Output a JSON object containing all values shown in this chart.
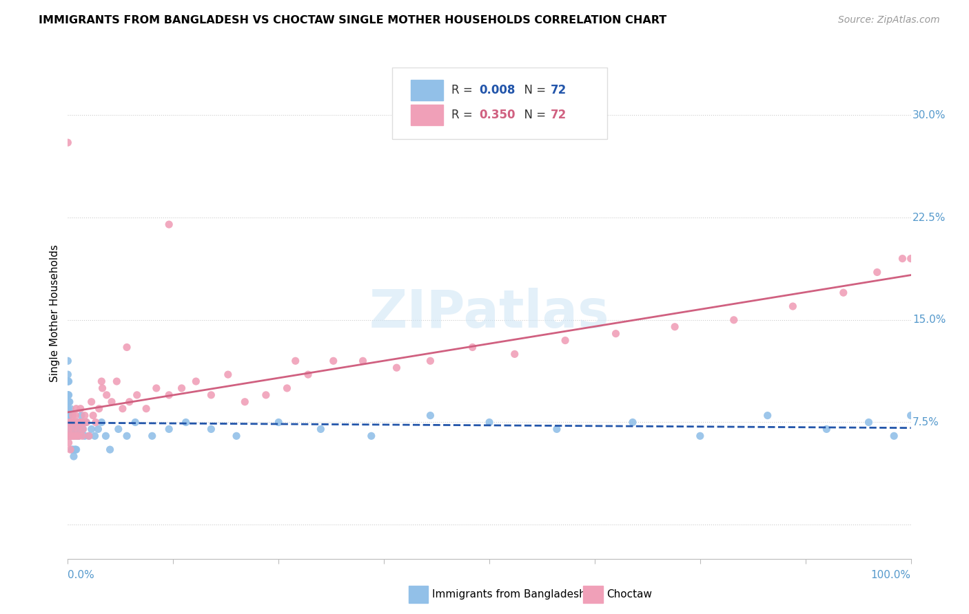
{
  "title": "IMMIGRANTS FROM BANGLADESH VS CHOCTAW SINGLE MOTHER HOUSEHOLDS CORRELATION CHART",
  "source": "Source: ZipAtlas.com",
  "ylabel": "Single Mother Households",
  "ytick_vals": [
    0.0,
    0.075,
    0.15,
    0.225,
    0.3
  ],
  "ytick_labels": [
    "",
    "7.5%",
    "15.0%",
    "22.5%",
    "30.0%"
  ],
  "xrange": [
    0.0,
    1.0
  ],
  "yrange": [
    -0.025,
    0.335
  ],
  "blue_color": "#92c0e8",
  "pink_color": "#f0a0b8",
  "blue_line_color": "#2255aa",
  "pink_line_color": "#d06080",
  "R_blue": "0.008",
  "R_pink": "0.350",
  "N": "72",
  "watermark": "ZIPatlas",
  "blue_x": [
    0.0,
    0.0,
    0.0,
    0.0,
    0.0,
    0.0,
    0.0,
    0.0,
    0.0,
    0.001,
    0.001,
    0.001,
    0.001,
    0.001,
    0.002,
    0.002,
    0.002,
    0.003,
    0.003,
    0.003,
    0.004,
    0.004,
    0.005,
    0.005,
    0.005,
    0.006,
    0.006,
    0.007,
    0.007,
    0.008,
    0.008,
    0.009,
    0.009,
    0.01,
    0.01,
    0.01,
    0.012,
    0.012,
    0.013,
    0.015,
    0.016,
    0.018,
    0.02,
    0.022,
    0.025,
    0.028,
    0.032,
    0.036,
    0.04,
    0.045,
    0.05,
    0.06,
    0.07,
    0.08,
    0.1,
    0.12,
    0.14,
    0.17,
    0.2,
    0.25,
    0.3,
    0.36,
    0.43,
    0.5,
    0.58,
    0.67,
    0.75,
    0.83,
    0.9,
    0.95,
    0.98,
    1.0
  ],
  "blue_y": [
    0.085,
    0.095,
    0.105,
    0.11,
    0.12,
    0.08,
    0.09,
    0.095,
    0.105,
    0.08,
    0.09,
    0.095,
    0.105,
    0.075,
    0.07,
    0.08,
    0.09,
    0.065,
    0.075,
    0.085,
    0.065,
    0.075,
    0.055,
    0.065,
    0.075,
    0.055,
    0.065,
    0.05,
    0.065,
    0.055,
    0.07,
    0.055,
    0.07,
    0.055,
    0.065,
    0.075,
    0.065,
    0.075,
    0.065,
    0.07,
    0.08,
    0.07,
    0.065,
    0.075,
    0.065,
    0.07,
    0.065,
    0.07,
    0.075,
    0.065,
    0.055,
    0.07,
    0.065,
    0.075,
    0.065,
    0.07,
    0.075,
    0.07,
    0.065,
    0.075,
    0.07,
    0.065,
    0.08,
    0.075,
    0.07,
    0.075,
    0.065,
    0.08,
    0.07,
    0.075,
    0.065,
    0.08
  ],
  "pink_x": [
    0.0,
    0.0,
    0.001,
    0.001,
    0.002,
    0.002,
    0.003,
    0.003,
    0.004,
    0.005,
    0.005,
    0.006,
    0.006,
    0.007,
    0.007,
    0.008,
    0.009,
    0.01,
    0.01,
    0.011,
    0.012,
    0.013,
    0.014,
    0.015,
    0.016,
    0.017,
    0.018,
    0.019,
    0.02,
    0.022,
    0.025,
    0.028,
    0.03,
    0.033,
    0.037,
    0.041,
    0.046,
    0.052,
    0.058,
    0.065,
    0.073,
    0.082,
    0.093,
    0.105,
    0.12,
    0.135,
    0.152,
    0.17,
    0.19,
    0.21,
    0.235,
    0.26,
    0.285,
    0.315,
    0.35,
    0.39,
    0.43,
    0.48,
    0.53,
    0.59,
    0.65,
    0.72,
    0.79,
    0.86,
    0.92,
    0.96,
    0.99,
    1.0,
    0.12,
    0.07,
    0.04,
    0.27
  ],
  "pink_y": [
    0.28,
    0.065,
    0.06,
    0.07,
    0.065,
    0.075,
    0.055,
    0.065,
    0.075,
    0.065,
    0.075,
    0.07,
    0.08,
    0.065,
    0.075,
    0.065,
    0.08,
    0.075,
    0.085,
    0.065,
    0.07,
    0.065,
    0.075,
    0.085,
    0.075,
    0.065,
    0.07,
    0.075,
    0.08,
    0.075,
    0.065,
    0.09,
    0.08,
    0.075,
    0.085,
    0.1,
    0.095,
    0.09,
    0.105,
    0.085,
    0.09,
    0.095,
    0.085,
    0.1,
    0.095,
    0.1,
    0.105,
    0.095,
    0.11,
    0.09,
    0.095,
    0.1,
    0.11,
    0.12,
    0.12,
    0.115,
    0.12,
    0.13,
    0.125,
    0.135,
    0.14,
    0.145,
    0.15,
    0.16,
    0.17,
    0.185,
    0.195,
    0.195,
    0.22,
    0.13,
    0.105,
    0.12
  ],
  "legend_blue_label": "R = 0.008  N = 72",
  "legend_pink_label": "R = 0.350  N = 72",
  "bottom_legend": [
    "Immigrants from Bangladesh",
    "Choctaw"
  ]
}
